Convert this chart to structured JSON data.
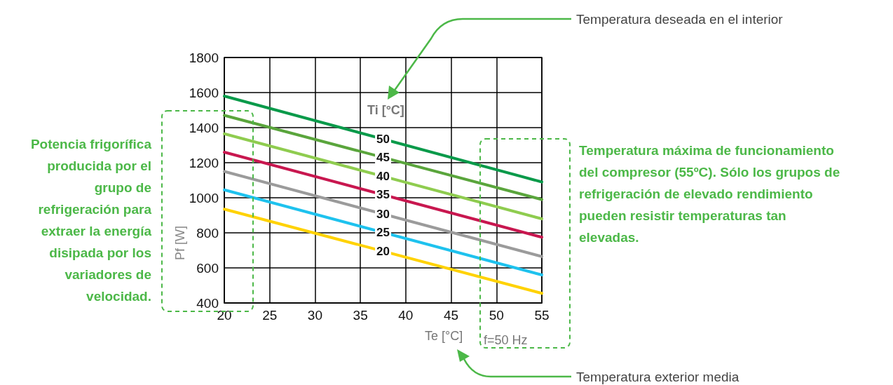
{
  "chart_data": {
    "type": "line",
    "xlabel": "Te [°C]",
    "ylabel": "Pf [W]",
    "legend_title": "Ti [°C]",
    "x": [
      20,
      55
    ],
    "xlim": [
      20,
      55
    ],
    "xticks": [
      20,
      25,
      30,
      35,
      40,
      45,
      50,
      55
    ],
    "ylim": [
      400,
      1800
    ],
    "yticks": [
      400,
      600,
      800,
      1000,
      1200,
      1400,
      1600,
      1800
    ],
    "grid": true,
    "marker": "none",
    "line_style": "solid",
    "series": [
      {
        "name": "50",
        "color": "#0a9a4a",
        "values": [
          1580,
          1090
        ]
      },
      {
        "name": "45",
        "color": "#5aa53c",
        "values": [
          1470,
          990
        ]
      },
      {
        "name": "40",
        "color": "#8fcc4f",
        "values": [
          1365,
          880
        ]
      },
      {
        "name": "35",
        "color": "#c8174f",
        "values": [
          1260,
          775
        ]
      },
      {
        "name": "30",
        "color": "#9b9b9b",
        "values": [
          1150,
          665
        ]
      },
      {
        "name": "25",
        "color": "#1ec2ee",
        "values": [
          1045,
          560
        ]
      },
      {
        "name": "20",
        "color": "#ffd200",
        "values": [
          935,
          455
        ]
      }
    ],
    "annotations": [
      "Temperatura deseada en el interior",
      "Temperatura exterior media",
      "Potencia frigorífica\nproducida por el\ngrupo de\nrefrigeración para\nextraer la energía\ndisipada por los\nvariadores de\nvelocidad.",
      "Temperatura máxima de funcionamiento\ndel compresor (55ºC). Sólo los grupos de\nrefrigeración de elevado rendimiento\npueden resistir temperaturas tan\nelevadas.",
      "f=50 Hz"
    ]
  }
}
